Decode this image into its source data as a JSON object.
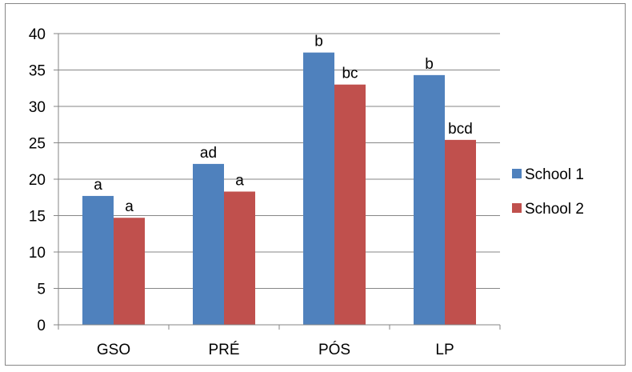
{
  "chart_data": {
    "type": "bar",
    "categories": [
      "GSO",
      "PRÉ",
      "PÓS",
      "LP"
    ],
    "series": [
      {
        "name": "School 1",
        "color": "#4F81BD",
        "values": [
          17.7,
          22.1,
          37.4,
          34.3
        ],
        "labels": [
          "a",
          "ad",
          "b",
          "b"
        ]
      },
      {
        "name": "School 2",
        "color": "#C0504D",
        "values": [
          14.7,
          18.3,
          33.0,
          25.4
        ],
        "labels": [
          "a",
          "a",
          "bc",
          "bcd"
        ]
      }
    ],
    "ylim": [
      0,
      40
    ],
    "yticks": [
      0,
      5,
      10,
      15,
      20,
      25,
      30,
      35,
      40
    ],
    "grid": true,
    "legend_position": "right",
    "title": "",
    "xlabel": "",
    "ylabel": ""
  }
}
